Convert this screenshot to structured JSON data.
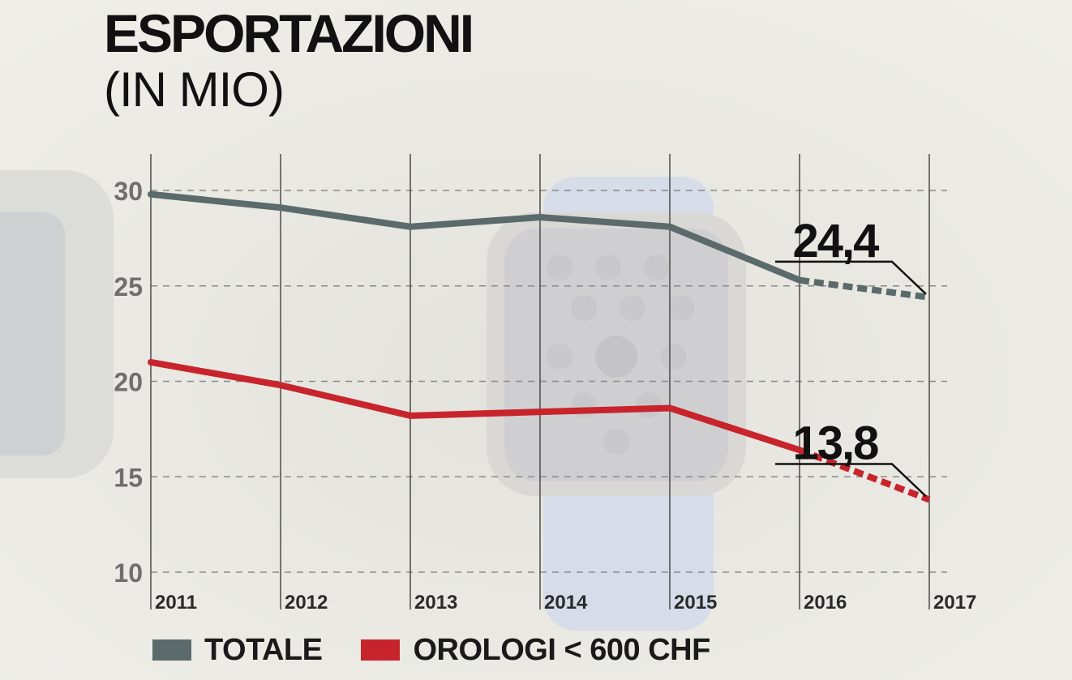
{
  "title": "ESPORTAZIONI",
  "subtitle": "(IN MIO)",
  "colors": {
    "totale": "#5b6a6a",
    "orologi": "#c8242c",
    "grid": "#8a8a8a",
    "text": "#111111"
  },
  "legend": [
    {
      "label": "TOTALE",
      "color": "#5b6a6a"
    },
    {
      "label": "OROLOGI < 600 CHF",
      "color": "#c8242c"
    }
  ],
  "chart_data": {
    "type": "line",
    "title": "ESPORTAZIONI",
    "subtitle": "(IN MIO)",
    "x": [
      "2011",
      "2012",
      "2013",
      "2014",
      "2015",
      "2016",
      "2017"
    ],
    "ylim": [
      10,
      30
    ],
    "yticks": [
      30,
      25,
      20,
      15,
      10
    ],
    "grid": true,
    "legend_position": "bottom",
    "series": [
      {
        "name": "TOTALE",
        "color": "#5b6a6a",
        "values": [
          29.8,
          29.1,
          28.1,
          28.6,
          28.1,
          25.3,
          24.4
        ],
        "forecast_from_index": 5
      },
      {
        "name": "OROLOGI < 600 CHF",
        "color": "#c8242c",
        "values": [
          21.0,
          19.8,
          18.2,
          18.4,
          18.6,
          16.4,
          13.8
        ],
        "forecast_from_index": 5
      }
    ],
    "annotations": [
      {
        "text": "24,4",
        "series": "TOTALE",
        "x": "2017",
        "y": 24.4
      },
      {
        "text": "13,8",
        "series": "OROLOGI < 600 CHF",
        "x": "2017",
        "y": 13.8
      }
    ]
  }
}
